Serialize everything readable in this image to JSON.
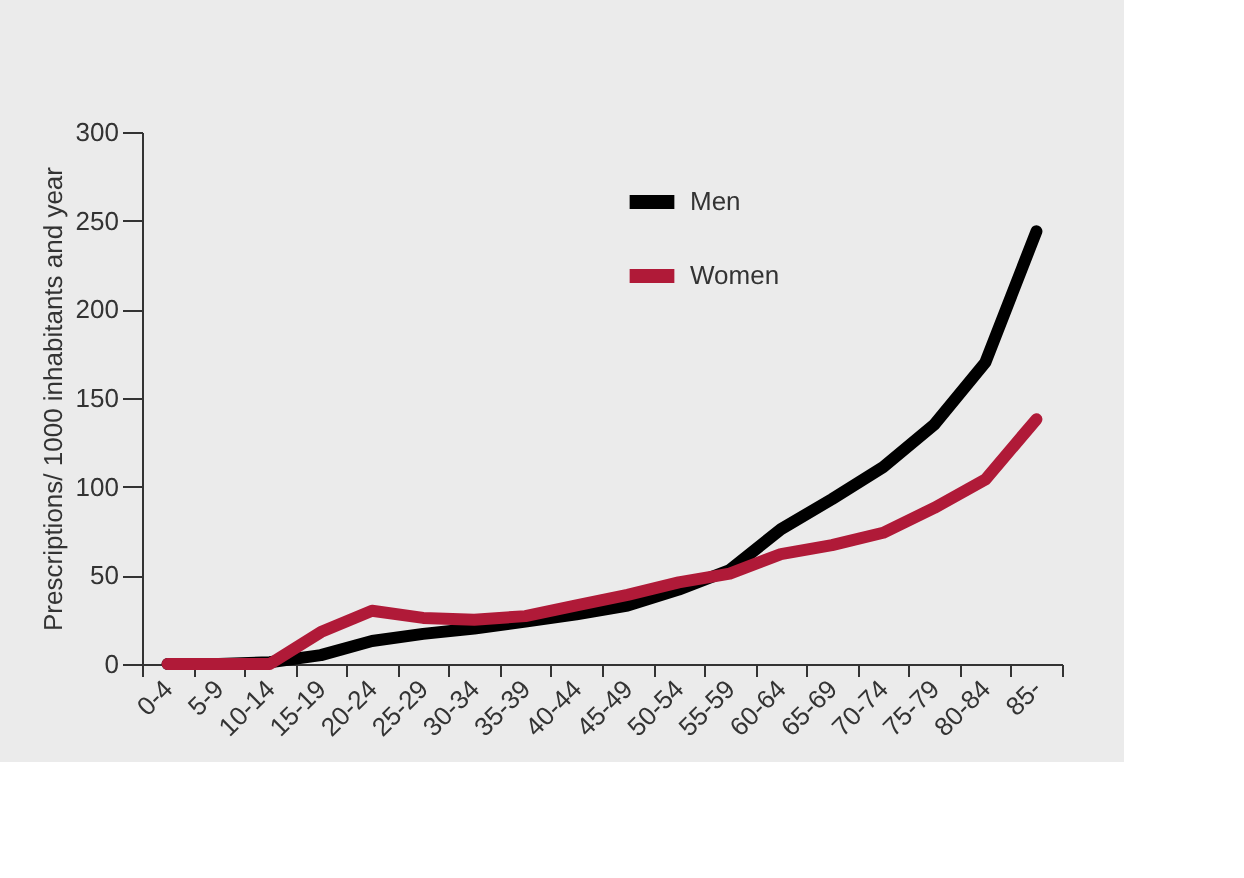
{
  "chart_data": {
    "type": "line",
    "ylabel": "Prescriptions/ 1000 inhabitants and year",
    "categories": [
      "0-4",
      "5-9",
      "10-14",
      "15-19",
      "20-24",
      "25-29",
      "30-34",
      "35-39",
      "40-44",
      "45-49",
      "50-54",
      "55-59",
      "60-64",
      "65-69",
      "70-74",
      "75-79",
      "80-84",
      "85-"
    ],
    "series": [
      {
        "name": "Men",
        "color": "#000000",
        "values": [
          0,
          0,
          1,
          5,
          13,
          17,
          20,
          24,
          28,
          33,
          42,
          53,
          76,
          93,
          111,
          135,
          170,
          244
        ]
      },
      {
        "name": "Women",
        "color": "#b01a38",
        "values": [
          0,
          0,
          0,
          18,
          30,
          26,
          25,
          27,
          33,
          39,
          46,
          51,
          62,
          67,
          74,
          88,
          104,
          138
        ]
      }
    ],
    "ylim": [
      0,
      300
    ],
    "yticks": [
      0,
      50,
      100,
      150,
      200,
      250,
      300
    ],
    "grid": false,
    "legend": "top",
    "marker": "none",
    "line_style": "solid"
  }
}
